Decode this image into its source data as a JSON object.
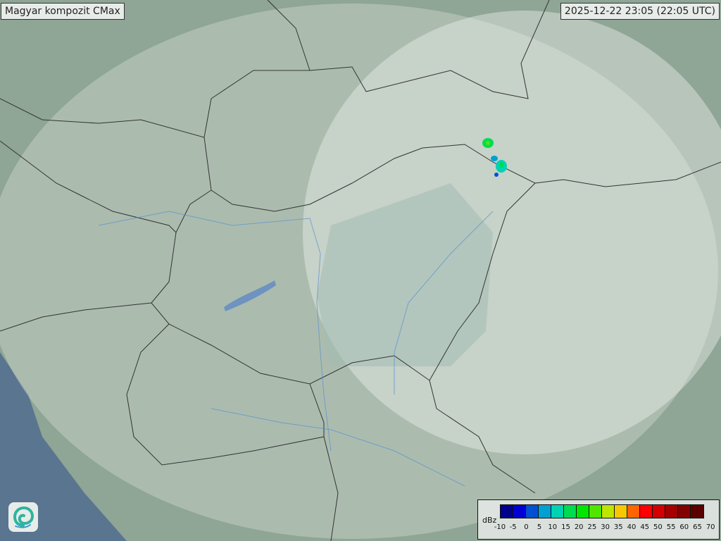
{
  "header": {
    "title": "Magyar kompozit  CMax",
    "timestamp": "2025-12-22 23:05 (22:05 UTC)"
  },
  "legend": {
    "unit": "dBz",
    "ticks": [
      "-10",
      "-5",
      "0",
      "5",
      "10",
      "15",
      "20",
      "25",
      "30",
      "35",
      "40",
      "45",
      "50",
      "55",
      "60",
      "65",
      "70"
    ],
    "colors": [
      "#00008c",
      "#0000d2",
      "#0050d2",
      "#00a0d2",
      "#00d2b4",
      "#00dc50",
      "#00e600",
      "#50e600",
      "#bee600",
      "#f5c800",
      "#ff6400",
      "#ff0000",
      "#d20000",
      "#a50000",
      "#820000",
      "#5a0000"
    ]
  },
  "logo": {
    "icon": "swirl-logo-icon"
  },
  "map": {
    "icon": "radar-composite-map"
  }
}
